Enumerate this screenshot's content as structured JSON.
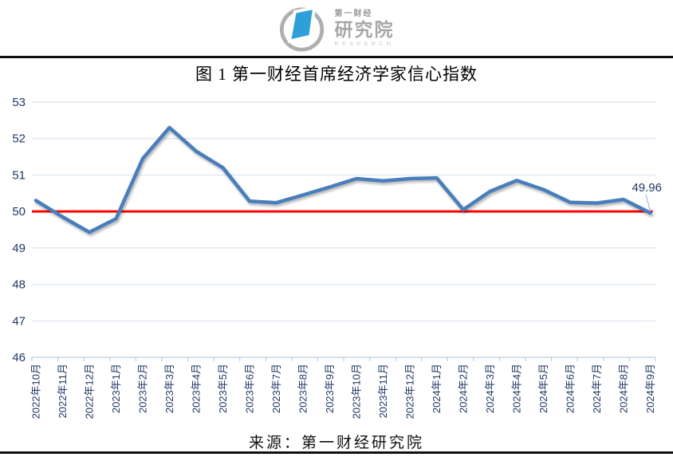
{
  "header": {
    "logo": {
      "brand_small": "第一财经",
      "brand_large": "研究院",
      "brand_sub": "RESEARCH",
      "accent_color": "#2d9fd9",
      "ring_color": "#afafaf"
    }
  },
  "figure": {
    "title": "图 1  第一财经首席经济学家信心指数",
    "source": "来源：第一财经研究院"
  },
  "chart_data": {
    "type": "line",
    "title": "图 1 第一财经首席经济学家信心指数",
    "categories": [
      "2022年10月",
      "2022年11月",
      "2022年12月",
      "2023年1月",
      "2023年2月",
      "2023年3月",
      "2023年4月",
      "2023年5月",
      "2023年6月",
      "2023年7月",
      "2023年8月",
      "2023年9月",
      "2023年10月",
      "2023年11月",
      "2023年12月",
      "2024年1月",
      "2024年2月",
      "2024年3月",
      "2024年4月",
      "2024年5月",
      "2024年6月",
      "2024年7月",
      "2024年8月",
      "2024年9月"
    ],
    "series": [
      {
        "name": "第一财经首席经济学家信心指数",
        "color": "#4a7ebb",
        "values": [
          50.3,
          49.85,
          49.43,
          49.8,
          51.45,
          52.3,
          51.65,
          51.2,
          50.28,
          50.24,
          50.45,
          50.67,
          50.9,
          50.84,
          50.9,
          50.92,
          50.05,
          50.55,
          50.85,
          50.6,
          50.25,
          50.23,
          50.33,
          49.96
        ]
      }
    ],
    "reference_line": {
      "value": 50,
      "color": "#ff0000"
    },
    "end_label": {
      "text": "49.96",
      "value": 49.96
    },
    "ylim": [
      46,
      53
    ],
    "ytick_interval": 1,
    "yticks": [
      "46",
      "47",
      "48",
      "49",
      "50",
      "51",
      "52",
      "53"
    ],
    "grid": true,
    "legend": "none",
    "axis_text_color": "#1f3864",
    "gridline_color": "#dbe5f1",
    "axisline_color": "#bccde2",
    "leader_color": "#9dc3e6",
    "xlabel": "",
    "ylabel": ""
  }
}
